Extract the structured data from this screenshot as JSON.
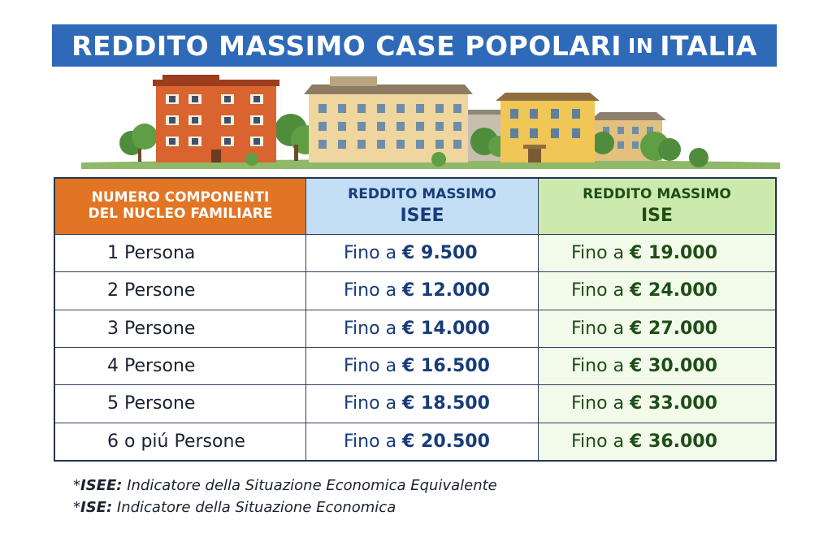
{
  "title": {
    "part1": "REDDITO MASSIMO CASE POPOLARI",
    "part2": "IN",
    "part3": "ITALIA"
  },
  "table": {
    "headers": {
      "col1_line1": "NUMERO COMPONENTI",
      "col1_line2": "DEL NUCLEO FAMILIARE",
      "col2_line1": "REDDITO MASSIMO",
      "col2_line2": "ISEE",
      "col3_line1": "REDDITO MASSIMO",
      "col3_line2": "ISE"
    },
    "prefix": "Fino a",
    "rows": [
      {
        "members": "1 Persona",
        "isee": "€ 9.500",
        "ise": "€ 19.000"
      },
      {
        "members": "2 Persone",
        "isee": "€ 12.000",
        "ise": "€ 24.000"
      },
      {
        "members": "3 Persone",
        "isee": "€ 14.000",
        "ise": "€ 27.000"
      },
      {
        "members": "4 Persone",
        "isee": "€ 16.500",
        "ise": "€ 30.000"
      },
      {
        "members": "5 Persone",
        "isee": "€ 18.500",
        "ise": "€ 33.000"
      },
      {
        "members": "6 o piú Persone",
        "isee": "€ 20.500",
        "ise": "€ 36.000"
      }
    ]
  },
  "notes": {
    "isee_term": "ISEE:",
    "isee_text": "Indicatore della Situazione Economica Equivalente",
    "ise_term": "ISE:",
    "ise_text": "Indicatore della Situazione Economica"
  },
  "colors": {
    "banner": "#2f6ab8",
    "header_members": "#e27524",
    "header_isee": "#c4def5",
    "header_ise": "#cdeaae",
    "isee_text": "#173c78",
    "ise_text": "#1f4d18"
  }
}
